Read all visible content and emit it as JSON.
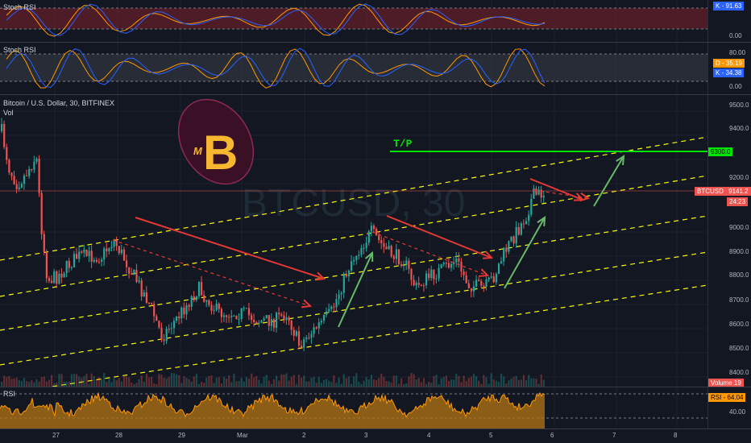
{
  "theme": {
    "background": "#131722",
    "bull": "#26a69a",
    "bear": "#ef5350",
    "stoch_k": "#2962ff",
    "stoch_d": "#ff9800",
    "rsi": "#ff9800",
    "channel": "#ffff00",
    "tp": "#00e600",
    "arrow_red": "#e53935",
    "arrow_green": "#66bb6a"
  },
  "panes": {
    "stoch1": {
      "label": "Stoch RSI",
      "ticks": [
        "0.00"
      ],
      "k_tag": "K",
      "k_value": "91.63"
    },
    "stoch2": {
      "label": "Stoch RSI",
      "ticks": [
        "80.00",
        "0.00"
      ],
      "d_tag": "D",
      "d_value": "35.19",
      "k_tag": "K",
      "k_value": "34.38"
    },
    "main": {
      "title": "Bitcoin / U.S. Dollar, 30, BITFINEX",
      "vol_label": "Vol",
      "watermark": "BTCUSD, 30",
      "ticks": [
        "9500.0",
        "9400.0",
        "9200.0",
        "9000.0",
        "8900.0",
        "8800.0",
        "8700.0",
        "8600.0",
        "8500.0",
        "8400.0"
      ],
      "tp_label": "T/P",
      "tp_price": "9300.0",
      "symbol_tag": "BTCUSD",
      "last_price": "9141.2",
      "countdown": "24:23",
      "volume_tag": "Volume",
      "volume_value": "19",
      "logo_letter": "B",
      "logo_prefix": "M"
    },
    "rsi": {
      "label": "RSI",
      "ticks": [
        "40.00"
      ],
      "tag": "RSI",
      "value": "64.04"
    }
  },
  "x_axis": {
    "labels": [
      "27",
      "28",
      "29",
      "Mar",
      "2",
      "3",
      "4",
      "5",
      "6",
      "7",
      "8"
    ]
  }
}
